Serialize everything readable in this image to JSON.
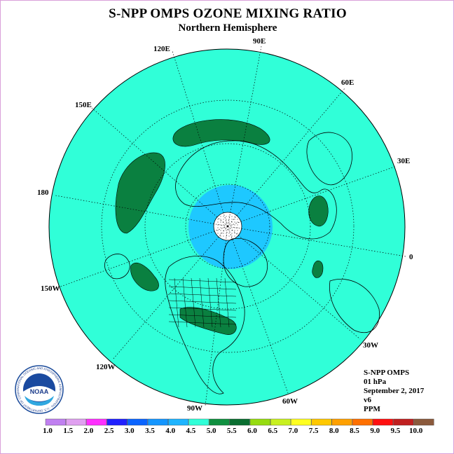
{
  "header": {
    "title": "S-NPP OMPS OZONE MIXING RATIO",
    "subtitle": "Northern Hemisphere"
  },
  "longitude_labels": [
    {
      "key": "lon-120e",
      "text": "120E"
    },
    {
      "key": "lon-90e",
      "text": "90E"
    },
    {
      "key": "lon-60e",
      "text": "60E"
    },
    {
      "key": "lon-150e",
      "text": "150E"
    },
    {
      "key": "lon-30e",
      "text": "30E"
    },
    {
      "key": "lon-180",
      "text": "180"
    },
    {
      "key": "lon-0",
      "text": "0"
    },
    {
      "key": "lon-150w",
      "text": "150W"
    },
    {
      "key": "lon-30w",
      "text": "30W"
    },
    {
      "key": "lon-120w",
      "text": "120W"
    },
    {
      "key": "lon-60w",
      "text": "60W"
    },
    {
      "key": "lon-90w",
      "text": "90W"
    }
  ],
  "info": {
    "instrument": "S-NPP OMPS",
    "level": "01 hPa",
    "date": "September 2, 2017",
    "version": "v6",
    "units": "PPM"
  },
  "logo": {
    "text": "NOAA",
    "ring_text": "NATIONAL OCEANIC AND ATMOSPHERIC ADMINISTRATION · U.S. DEPARTMENT OF COMMERCE"
  },
  "colorbar": {
    "labels": [
      "1.0",
      "1.5",
      "2.0",
      "2.5",
      "3.0",
      "3.5",
      "4.0",
      "4.5",
      "5.0",
      "5.5",
      "6.0",
      "6.5",
      "7.0",
      "7.5",
      "8.0",
      "8.5",
      "9.0",
      "9.5",
      "10.0"
    ],
    "colors": [
      "#c080f0",
      "#e0a0f0",
      "#ff30ff",
      "#2020ff",
      "#0a64ff",
      "#1496ff",
      "#1eb4ff",
      "#30ffd8",
      "#109040",
      "#0a6e30",
      "#96dc10",
      "#c8f020",
      "#ffff20",
      "#ffc800",
      "#ffa000",
      "#ff7000",
      "#ff1010",
      "#c02020"
    ],
    "last_color": "#8b5a3c"
  },
  "colors": {
    "background_level": "#30ffd8",
    "high_region": "#0a8040",
    "polar_region": "#1ec8ff",
    "no_data": "#ffffff"
  }
}
